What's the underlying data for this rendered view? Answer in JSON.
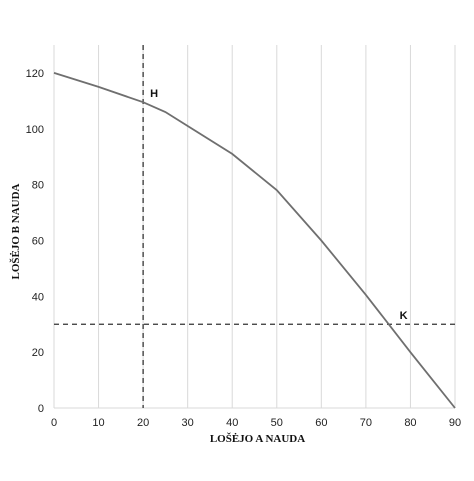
{
  "chart_data": {
    "type": "line",
    "xlabel": "LOŠĖJO  A NAUDA",
    "ylabel": "LOŠĖJO  B NAUDA",
    "xlim": [
      0,
      90
    ],
    "ylim": [
      0,
      130
    ],
    "x_ticks": [
      0,
      10,
      20,
      30,
      40,
      50,
      60,
      70,
      80,
      90
    ],
    "y_ticks": [
      0,
      20,
      40,
      60,
      80,
      100,
      120
    ],
    "grid": "vertical",
    "series": [
      {
        "color": "#6f6f6f",
        "points": [
          [
            0,
            120
          ],
          [
            10,
            115
          ],
          [
            20,
            109.5
          ],
          [
            25,
            106
          ],
          [
            30,
            101
          ],
          [
            40,
            91
          ],
          [
            50,
            78
          ],
          [
            60,
            60
          ],
          [
            70,
            40.5
          ],
          [
            80,
            20
          ],
          [
            90,
            0
          ]
        ]
      }
    ],
    "reference_lines": [
      {
        "axis": "x",
        "value": 20,
        "style": "dashed"
      },
      {
        "axis": "y",
        "value": 30,
        "style": "dashed"
      }
    ],
    "annotations": [
      {
        "label": "H",
        "x": 20,
        "y": 109.5
      },
      {
        "label": "K",
        "x": 76,
        "y": 30
      }
    ]
  }
}
